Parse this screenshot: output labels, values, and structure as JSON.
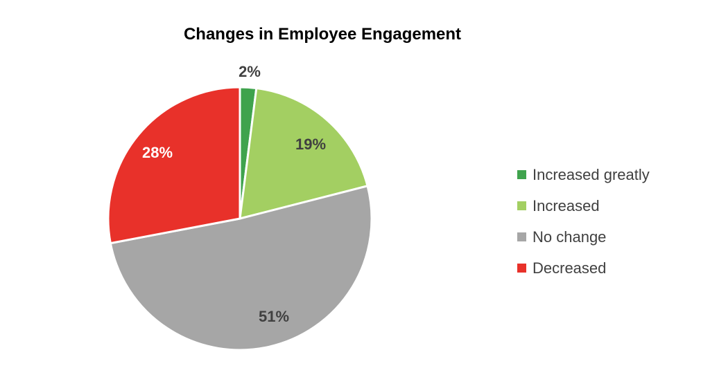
{
  "chart_data": {
    "type": "pie",
    "title": "Changes in Employee Engagement",
    "categories": [
      "Increased greatly",
      "Increased",
      "No change",
      "Decreased"
    ],
    "values": [
      2,
      19,
      51,
      28
    ],
    "labels": [
      "2%",
      "19%",
      "51%",
      "28%"
    ],
    "colors": [
      "#3FA34D",
      "#A3CF62",
      "#A6A6A6",
      "#E8312A"
    ],
    "label_colors": [
      "#404040",
      "#404040",
      "#404040",
      "#ffffff"
    ],
    "start_angle": "12 o'clock, clockwise",
    "legend_position": "right"
  }
}
